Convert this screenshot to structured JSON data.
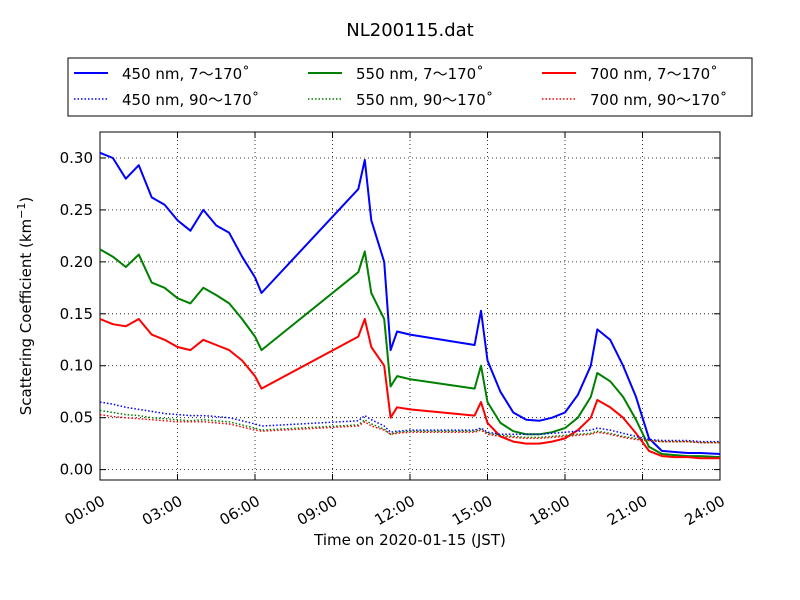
{
  "chart_data": {
    "type": "line",
    "title": "NL200115.dat",
    "xlabel": "Time on 2020-01-15 (JST)",
    "ylabel": "Scattering Coefficient (km",
    "ylabel_sup": "−1",
    "ylabel_close": ")",
    "xlim": [
      "2020-01-15 00:00",
      "2020-01-16 00:00"
    ],
    "ylim": [
      -0.01,
      0.325
    ],
    "grid": true,
    "legend_position": "top, above plot",
    "x_ticks": [
      "00:00",
      "03:00",
      "06:00",
      "09:00",
      "12:00",
      "15:00",
      "18:00",
      "21:00",
      "24:00"
    ],
    "y_ticks": [
      "0.00",
      "0.05",
      "0.10",
      "0.15",
      "0.20",
      "0.25",
      "0.30"
    ],
    "x": [
      "2020-01-15 00:00",
      "2020-01-15 00:30",
      "2020-01-15 01:00",
      "2020-01-15 01:30",
      "2020-01-15 02:00",
      "2020-01-15 02:30",
      "2020-01-15 03:00",
      "2020-01-15 03:30",
      "2020-01-15 04:00",
      "2020-01-15 04:30",
      "2020-01-15 05:00",
      "2020-01-15 05:30",
      "2020-01-15 06:00",
      "2020-01-15 06:15",
      "2020-01-15 10:00",
      "2020-01-15 10:15",
      "2020-01-15 10:30",
      "2020-01-15 11:00",
      "2020-01-15 11:15",
      "2020-01-15 11:30",
      "2020-01-15 12:00",
      "2020-01-15 14:30",
      "2020-01-15 14:45",
      "2020-01-15 15:00",
      "2020-01-15 15:30",
      "2020-01-15 16:00",
      "2020-01-15 16:30",
      "2020-01-15 17:00",
      "2020-01-15 17:30",
      "2020-01-15 18:00",
      "2020-01-15 18:30",
      "2020-01-15 19:00",
      "2020-01-15 19:15",
      "2020-01-15 19:45",
      "2020-01-15 20:15",
      "2020-01-15 20:45",
      "2020-01-15 21:15",
      "2020-01-15 21:45",
      "2020-01-15 22:15",
      "2020-01-15 22:45",
      "2020-01-15 23:15",
      "2020-01-16 00:00"
    ],
    "series": [
      {
        "name": "450 nm, 7～170˚",
        "color": "#0000ff",
        "style": "solid",
        "values": [
          0.305,
          0.3,
          0.28,
          0.293,
          0.262,
          0.255,
          0.24,
          0.23,
          0.25,
          0.235,
          0.228,
          0.205,
          0.185,
          0.17,
          0.27,
          0.298,
          0.24,
          0.2,
          0.115,
          0.133,
          0.13,
          0.12,
          0.153,
          0.105,
          0.075,
          0.055,
          0.048,
          0.047,
          0.05,
          0.055,
          0.072,
          0.1,
          0.135,
          0.125,
          0.1,
          0.07,
          0.03,
          0.018,
          0.017,
          0.016,
          0.016,
          0.015
        ]
      },
      {
        "name": "550 nm, 7～170˚",
        "color": "#008000",
        "style": "solid",
        "values": [
          0.212,
          0.205,
          0.195,
          0.207,
          0.18,
          0.175,
          0.165,
          0.16,
          0.175,
          0.168,
          0.16,
          0.145,
          0.128,
          0.115,
          0.19,
          0.21,
          0.17,
          0.145,
          0.08,
          0.09,
          0.087,
          0.078,
          0.1,
          0.065,
          0.045,
          0.037,
          0.034,
          0.034,
          0.036,
          0.04,
          0.05,
          0.07,
          0.093,
          0.085,
          0.07,
          0.048,
          0.022,
          0.015,
          0.014,
          0.013,
          0.013,
          0.012
        ]
      },
      {
        "name": "700 nm, 7～170˚",
        "color": "#ff0000",
        "style": "solid",
        "values": [
          0.145,
          0.14,
          0.138,
          0.145,
          0.13,
          0.125,
          0.118,
          0.115,
          0.125,
          0.12,
          0.115,
          0.105,
          0.09,
          0.078,
          0.128,
          0.145,
          0.118,
          0.1,
          0.05,
          0.06,
          0.058,
          0.052,
          0.065,
          0.045,
          0.032,
          0.027,
          0.025,
          0.025,
          0.027,
          0.03,
          0.038,
          0.05,
          0.067,
          0.06,
          0.05,
          0.035,
          0.018,
          0.013,
          0.012,
          0.012,
          0.011,
          0.011
        ]
      },
      {
        "name": "450 nm, 90～170˚",
        "color": "#0000ff",
        "style": "dotted",
        "values": [
          0.065,
          0.063,
          0.06,
          0.058,
          0.056,
          0.054,
          0.053,
          0.052,
          0.052,
          0.051,
          0.05,
          0.047,
          0.044,
          0.042,
          0.047,
          0.052,
          0.048,
          0.042,
          0.036,
          0.037,
          0.038,
          0.038,
          0.04,
          0.036,
          0.034,
          0.034,
          0.034,
          0.034,
          0.035,
          0.036,
          0.037,
          0.038,
          0.04,
          0.038,
          0.035,
          0.032,
          0.029,
          0.028,
          0.028,
          0.028,
          0.027,
          0.027
        ]
      },
      {
        "name": "550 nm, 90～170˚",
        "color": "#008000",
        "style": "dotted",
        "values": [
          0.057,
          0.055,
          0.053,
          0.052,
          0.05,
          0.049,
          0.048,
          0.047,
          0.048,
          0.047,
          0.046,
          0.043,
          0.04,
          0.038,
          0.043,
          0.048,
          0.044,
          0.039,
          0.034,
          0.036,
          0.037,
          0.037,
          0.039,
          0.035,
          0.033,
          0.032,
          0.031,
          0.031,
          0.032,
          0.033,
          0.034,
          0.035,
          0.037,
          0.035,
          0.032,
          0.03,
          0.028,
          0.027,
          0.027,
          0.027,
          0.026,
          0.026
        ]
      },
      {
        "name": "700 nm, 90～170˚",
        "color": "#ff0000",
        "style": "dotted",
        "values": [
          0.053,
          0.051,
          0.05,
          0.049,
          0.048,
          0.047,
          0.046,
          0.046,
          0.046,
          0.045,
          0.044,
          0.041,
          0.038,
          0.037,
          0.042,
          0.046,
          0.042,
          0.038,
          0.034,
          0.035,
          0.036,
          0.036,
          0.038,
          0.034,
          0.032,
          0.031,
          0.03,
          0.03,
          0.031,
          0.032,
          0.033,
          0.034,
          0.036,
          0.034,
          0.031,
          0.029,
          0.028,
          0.027,
          0.027,
          0.027,
          0.026,
          0.026
        ]
      }
    ],
    "legend_order": [
      0,
      1,
      2,
      3,
      4,
      5
    ],
    "legend_columns": 3
  }
}
